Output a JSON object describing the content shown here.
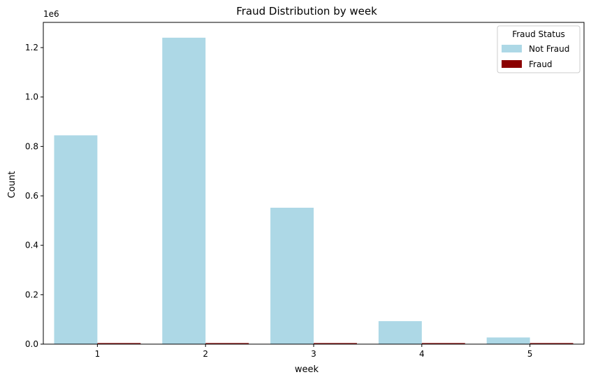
{
  "chart_data": {
    "type": "bar",
    "title": "Fraud Distribution by week",
    "xlabel": "week",
    "ylabel": "Count",
    "y_offset_label": "1e6",
    "categories": [
      "1",
      "2",
      "3",
      "4",
      "5"
    ],
    "y_ticks": [
      "0.0",
      "0.2",
      "0.4",
      "0.6",
      "0.8",
      "1.0",
      "1.2"
    ],
    "y_tick_values": [
      0,
      200000,
      400000,
      600000,
      800000,
      1000000,
      1200000
    ],
    "ylim": [
      0,
      1302000
    ],
    "grid": false,
    "legend": {
      "title": "Fraud Status",
      "placement": "top-right"
    },
    "series": [
      {
        "name": "Not Fraud",
        "color": "#add8e6",
        "values": [
          845000,
          1240000,
          552000,
          93000,
          27000
        ]
      },
      {
        "name": "Fraud",
        "color": "#8b0000",
        "values": [
          2500,
          3000,
          2000,
          1000,
          1500
        ]
      }
    ]
  }
}
